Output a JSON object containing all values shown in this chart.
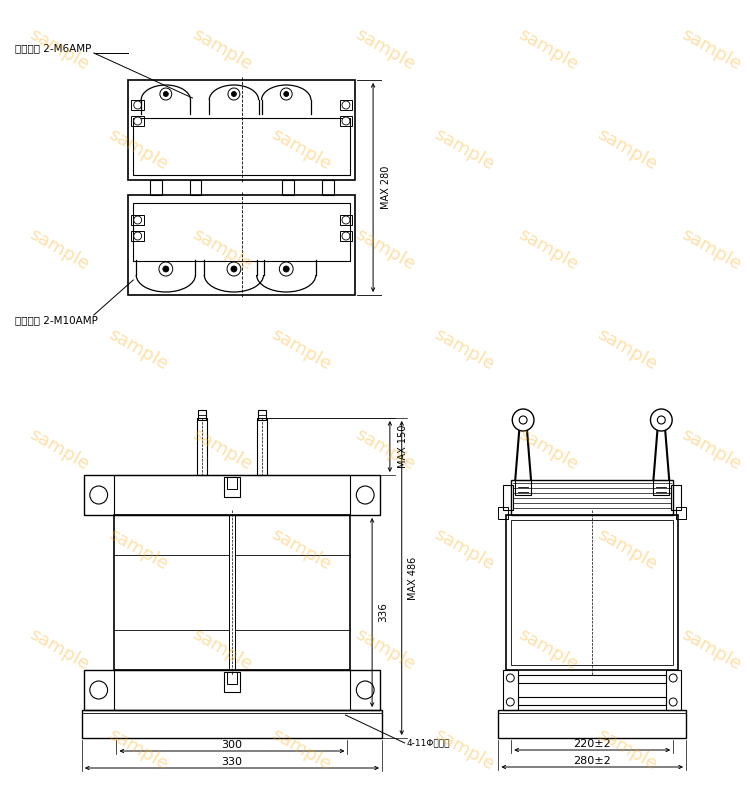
{
  "bg_color": "#ffffff",
  "line_color": "#000000",
  "watermark_color": "#FFA500",
  "watermark_alpha": 0.35,
  "watermark_text": "sample",
  "watermark_fontsize": 13,
  "label_ichiji": "一次端子 2-M6AMP",
  "label_niji": "二次端子 2-M10AMP",
  "dim_max280": "MAX 280",
  "dim_max150": "MAX 150",
  "dim_max486": "MAX 486",
  "dim_336": "336",
  "dim_300": "300",
  "dim_330": "330",
  "dim_hole": "4-11Φ取付穴",
  "dim_220": "220±2",
  "dim_280side": "280±2"
}
